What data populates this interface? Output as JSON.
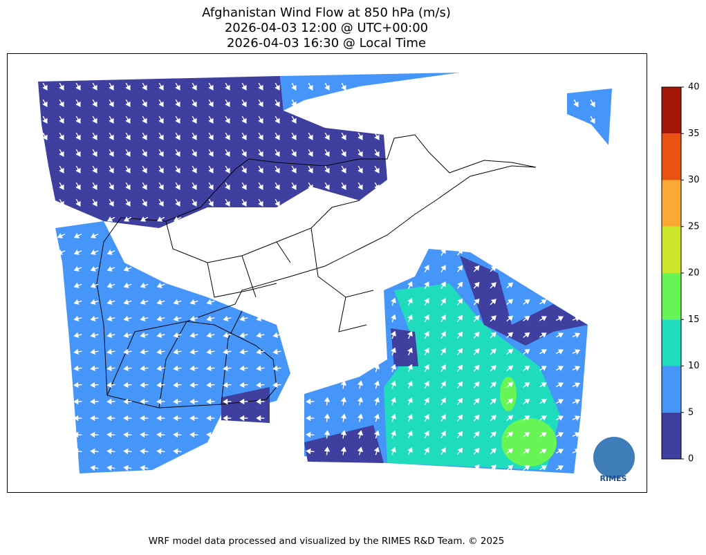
{
  "title_lines": [
    "Afghanistan Wind Flow at 850 hPa (m/s)",
    "2026-04-03 12:00 @ UTC+00:00",
    "2026-04-03 16:30 @ Local Time"
  ],
  "colorbar": {
    "ticks": [
      0,
      5,
      10,
      15,
      20,
      25,
      30,
      35,
      40
    ],
    "colors": [
      "#3f3f9f",
      "#4696fa",
      "#1fdcbc",
      "#66f555",
      "#cce62c",
      "#fca834",
      "#ea5214",
      "#a31504"
    ]
  },
  "logo": {
    "text": "RIMES"
  },
  "footer": "WRF model data processed and visualized by the RIMES R&D Team. © 2025"
}
